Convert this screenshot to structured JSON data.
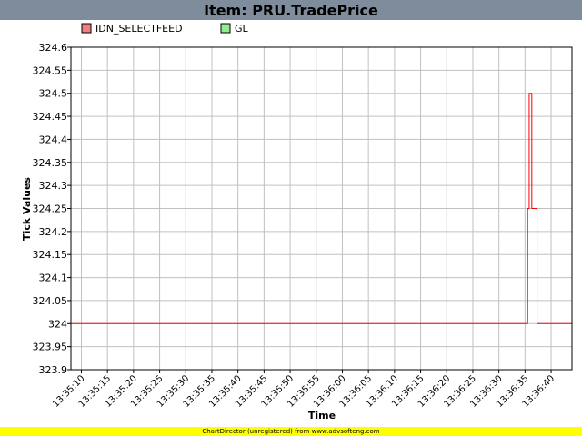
{
  "page": {
    "title": "Item: PRU.TradePrice",
    "footer": "ChartDirector (unregistered) from www.advsofteng.com"
  },
  "chart_data": {
    "type": "line",
    "title": "Item: PRU.TradePrice",
    "xlabel": "Time",
    "ylabel": "Tick Values",
    "ylim": [
      323.9,
      324.6
    ],
    "yticks": [
      "323.9",
      "323.95",
      "324",
      "324.05",
      "324.1",
      "324.15",
      "324.2",
      "324.25",
      "324.3",
      "324.35",
      "324.4",
      "324.45",
      "324.5",
      "324.55",
      "324.6"
    ],
    "xlim": [
      "13:35:08",
      "13:36:44"
    ],
    "xticks": [
      "13:35:10",
      "13:35:15",
      "13:35:20",
      "13:35:25",
      "13:35:30",
      "13:35:35",
      "13:35:40",
      "13:35:45",
      "13:35:50",
      "13:35:55",
      "13:36:00",
      "13:36:05",
      "13:36:10",
      "13:36:15",
      "13:36:20",
      "13:36:25",
      "13:36:30",
      "13:36:35",
      "13:36:40"
    ],
    "grid": true,
    "legend_position": "top-left",
    "series": [
      {
        "name": "IDN_SELECTFEED",
        "color": "#ff0000",
        "legend_color": "#f08080",
        "step": true,
        "points": [
          [
            "13:35:08",
            324
          ],
          [
            "13:36:35.5",
            324.25
          ],
          [
            "13:36:35.8",
            324.5
          ],
          [
            "13:36:36.3",
            324.25
          ],
          [
            "13:36:37.3",
            324
          ],
          [
            "13:36:44",
            324.25
          ]
        ]
      },
      {
        "name": "GL",
        "color": "#00cc00",
        "legend_color": "#90ee90",
        "step": true,
        "points": []
      }
    ]
  }
}
